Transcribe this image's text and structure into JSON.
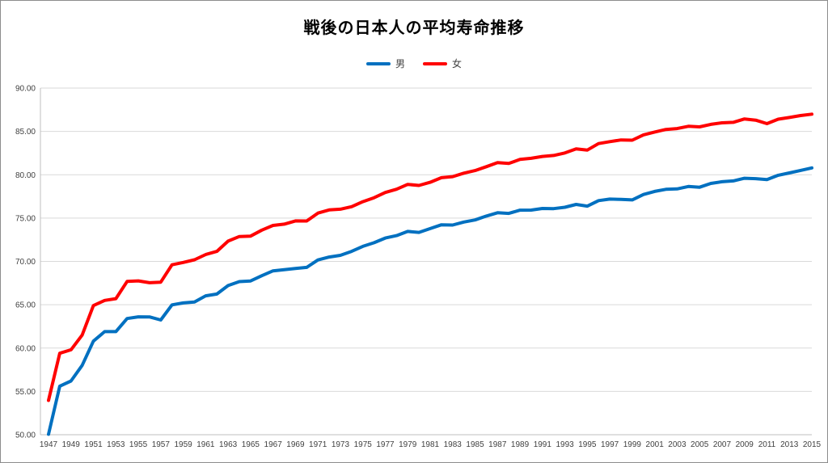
{
  "colors": {
    "male": "#0070C0",
    "female": "#FF0000",
    "grid": "#d9d9d9",
    "axis": "#bfbfbf"
  },
  "chart_data": {
    "type": "line",
    "title": "戦後の日本人の平均寿命推移",
    "xlabel": "",
    "ylabel": "",
    "ylim": [
      50,
      90
    ],
    "yticks": [
      "50.00",
      "55.00",
      "60.00",
      "65.00",
      "70.00",
      "75.00",
      "80.00",
      "85.00",
      "90.00"
    ],
    "grid": true,
    "legend_position": "top",
    "x": [
      1947,
      1948,
      1949,
      1950,
      1951,
      1952,
      1953,
      1954,
      1955,
      1956,
      1957,
      1958,
      1959,
      1960,
      1961,
      1962,
      1963,
      1964,
      1965,
      1966,
      1967,
      1968,
      1969,
      1970,
      1971,
      1972,
      1973,
      1974,
      1975,
      1976,
      1977,
      1978,
      1979,
      1980,
      1981,
      1982,
      1983,
      1984,
      1985,
      1986,
      1987,
      1988,
      1989,
      1990,
      1991,
      1992,
      1993,
      1994,
      1995,
      1996,
      1997,
      1998,
      1999,
      2000,
      2001,
      2002,
      2003,
      2004,
      2005,
      2006,
      2007,
      2008,
      2009,
      2010,
      2011,
      2012,
      2013,
      2014,
      2015
    ],
    "xticks": [
      "1947",
      "1949",
      "1951",
      "1953",
      "1955",
      "1957",
      "1959",
      "1961",
      "1963",
      "1965",
      "1967",
      "1969",
      "1971",
      "1973",
      "1975",
      "1977",
      "1979",
      "1981",
      "1983",
      "1985",
      "1987",
      "1989",
      "1991",
      "1993",
      "1995",
      "1997",
      "1999",
      "2001",
      "2003",
      "2005",
      "2007",
      "2009",
      "2011",
      "2013",
      "2015"
    ],
    "series": [
      {
        "name": "男",
        "color": "#0070C0",
        "values": [
          50.06,
          55.6,
          56.2,
          58.0,
          60.8,
          61.9,
          61.9,
          63.41,
          63.6,
          63.59,
          63.24,
          64.98,
          65.21,
          65.32,
          66.03,
          66.23,
          67.21,
          67.67,
          67.74,
          68.35,
          68.91,
          69.05,
          69.18,
          69.31,
          70.17,
          70.5,
          70.7,
          71.16,
          71.73,
          72.15,
          72.69,
          72.97,
          73.46,
          73.35,
          73.79,
          74.22,
          74.2,
          74.54,
          74.78,
          75.23,
          75.61,
          75.54,
          75.91,
          75.92,
          76.11,
          76.09,
          76.25,
          76.57,
          76.38,
          77.01,
          77.19,
          77.16,
          77.1,
          77.72,
          78.07,
          78.32,
          78.36,
          78.64,
          78.56,
          79.0,
          79.19,
          79.29,
          79.59,
          79.55,
          79.44,
          79.94,
          80.21,
          80.5,
          80.79
        ]
      },
      {
        "name": "女",
        "color": "#FF0000",
        "values": [
          53.96,
          59.4,
          59.8,
          61.5,
          64.9,
          65.5,
          65.7,
          67.69,
          67.75,
          67.54,
          67.6,
          69.61,
          69.88,
          70.19,
          70.79,
          71.16,
          72.34,
          72.87,
          72.92,
          73.61,
          74.15,
          74.3,
          74.67,
          74.66,
          75.58,
          75.94,
          76.02,
          76.31,
          76.89,
          77.35,
          77.95,
          78.33,
          78.89,
          78.76,
          79.13,
          79.66,
          79.78,
          80.18,
          80.48,
          80.93,
          81.39,
          81.3,
          81.77,
          81.9,
          82.11,
          82.22,
          82.51,
          82.98,
          82.85,
          83.59,
          83.82,
          84.01,
          83.99,
          84.6,
          84.93,
          85.23,
          85.33,
          85.59,
          85.52,
          85.81,
          85.99,
          86.05,
          86.44,
          86.3,
          85.9,
          86.41,
          86.61,
          86.83,
          86.99
        ]
      }
    ]
  }
}
